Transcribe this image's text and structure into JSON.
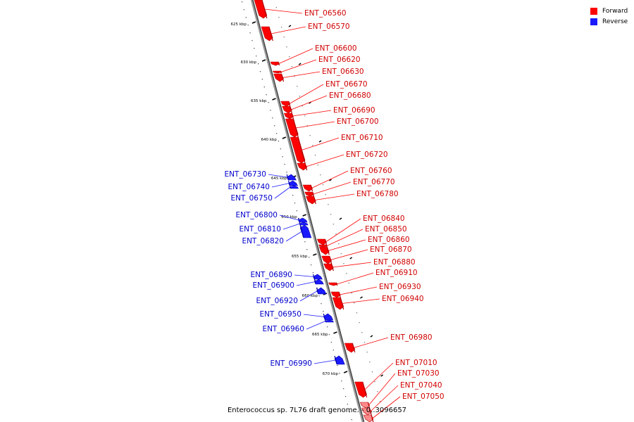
{
  "legend": {
    "forward_label": "Forward",
    "reverse_label": "Reverse",
    "forward_color": "#ff0000",
    "reverse_color": "#1a1aff"
  },
  "caption": "Enterococcus sp. 7L76 draft genome. - 0..3096657",
  "ruler": {
    "ticks": [
      {
        "label": "625 kbp",
        "kbp": 625
      },
      {
        "label": "630 kbp",
        "kbp": 630
      },
      {
        "label": "635 kbp",
        "kbp": 635
      },
      {
        "label": "640 kbp",
        "kbp": 640
      },
      {
        "label": "645 kbp",
        "kbp": 645
      },
      {
        "label": "650 kbp",
        "kbp": 650
      },
      {
        "label": "655 kbp",
        "kbp": 655
      },
      {
        "label": "660 kbp",
        "kbp": 660
      },
      {
        "label": "665 kbp",
        "kbp": 665
      },
      {
        "label": "670 kbp",
        "kbp": 670
      }
    ]
  },
  "genes": [
    {
      "name": "ENT_06560",
      "strand": "forward"
    },
    {
      "name": "ENT_06570",
      "strand": "forward"
    },
    {
      "name": "ENT_06600",
      "strand": "forward"
    },
    {
      "name": "ENT_06620",
      "strand": "forward"
    },
    {
      "name": "ENT_06630",
      "strand": "forward"
    },
    {
      "name": "ENT_06670",
      "strand": "forward"
    },
    {
      "name": "ENT_06680",
      "strand": "forward"
    },
    {
      "name": "ENT_06690",
      "strand": "forward"
    },
    {
      "name": "ENT_06700",
      "strand": "forward"
    },
    {
      "name": "ENT_06710",
      "strand": "forward"
    },
    {
      "name": "ENT_06720",
      "strand": "forward"
    },
    {
      "name": "ENT_06730",
      "strand": "reverse"
    },
    {
      "name": "ENT_06740",
      "strand": "reverse"
    },
    {
      "name": "ENT_06750",
      "strand": "reverse"
    },
    {
      "name": "ENT_06760",
      "strand": "forward"
    },
    {
      "name": "ENT_06770",
      "strand": "forward"
    },
    {
      "name": "ENT_06780",
      "strand": "forward"
    },
    {
      "name": "ENT_06800",
      "strand": "reverse"
    },
    {
      "name": "ENT_06810",
      "strand": "reverse"
    },
    {
      "name": "ENT_06820",
      "strand": "reverse"
    },
    {
      "name": "ENT_06840",
      "strand": "forward"
    },
    {
      "name": "ENT_06850",
      "strand": "forward"
    },
    {
      "name": "ENT_06860",
      "strand": "forward"
    },
    {
      "name": "ENT_06870",
      "strand": "forward"
    },
    {
      "name": "ENT_06880",
      "strand": "forward"
    },
    {
      "name": "ENT_06890",
      "strand": "reverse"
    },
    {
      "name": "ENT_06900",
      "strand": "reverse"
    },
    {
      "name": "ENT_06910",
      "strand": "forward"
    },
    {
      "name": "ENT_06920",
      "strand": "reverse"
    },
    {
      "name": "ENT_06930",
      "strand": "forward"
    },
    {
      "name": "ENT_06940",
      "strand": "forward"
    },
    {
      "name": "ENT_06950",
      "strand": "reverse"
    },
    {
      "name": "ENT_06960",
      "strand": "reverse"
    },
    {
      "name": "ENT_06980",
      "strand": "forward"
    },
    {
      "name": "ENT_06990",
      "strand": "reverse"
    },
    {
      "name": "ENT_07010",
      "strand": "forward"
    },
    {
      "name": "ENT_07030",
      "strand": "forward"
    },
    {
      "name": "ENT_07040",
      "strand": "forward"
    },
    {
      "name": "ENT_07050",
      "strand": "forward"
    }
  ]
}
